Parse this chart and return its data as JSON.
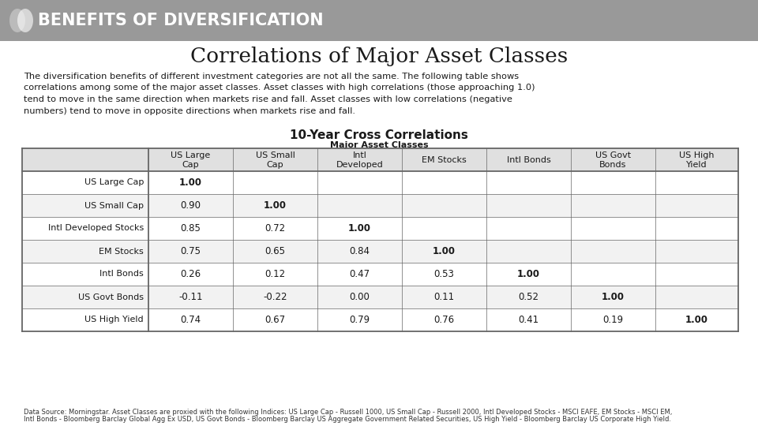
{
  "title": "BENEFITS OF DIVERSIFICATION",
  "subtitle": "Correlations of Major Asset Classes",
  "body_text": "The diversification benefits of different investment categories are not all the same. The following table shows correlations among some of the major asset classes. Asset classes with high correlations (those approaching 1.0) tend to move in the same direction when markets rise and fall. Asset classes with low correlations (negative numbers) tend to move in opposite directions when markets rise and fall.",
  "table_title": "10-Year Cross Correlations",
  "table_subtitle": "Major Asset Classes",
  "col_headers": [
    "",
    "US Large\nCap",
    "US Small\nCap",
    "Intl\nDeveloped",
    "EM Stocks",
    "Intl Bonds",
    "US Govt\nBonds",
    "US High\nYield"
  ],
  "row_labels": [
    "US Large Cap",
    "US Small Cap",
    "Intl Developed Stocks",
    "EM Stocks",
    "Intl Bonds",
    "US Govt Bonds",
    "US High Yield"
  ],
  "table_data": [
    [
      "1.00",
      "",
      "",
      "",
      "",
      "",
      ""
    ],
    [
      "0.90",
      "1.00",
      "",
      "",
      "",
      "",
      ""
    ],
    [
      "0.85",
      "0.72",
      "1.00",
      "",
      "",
      "",
      ""
    ],
    [
      "0.75",
      "0.65",
      "0.84",
      "1.00",
      "",
      "",
      ""
    ],
    [
      "0.26",
      "0.12",
      "0.47",
      "0.53",
      "1.00",
      "",
      ""
    ],
    [
      "-0.11",
      "-0.22",
      "0.00",
      "0.11",
      "0.52",
      "1.00",
      ""
    ],
    [
      "0.74",
      "0.67",
      "0.79",
      "0.76",
      "0.41",
      "0.19",
      "1.00"
    ]
  ],
  "footnote_line1": "Data Source: Morningstar. Asset Classes are proxied with the following Indices: US Large Cap - Russell 1000, US Small Cap - Russell 2000, Intl Developed Stocks - MSCI EAFE, EM Stocks - MSCI EM,",
  "footnote_line2": "Intl Bonds - Bloomberg Barclay Global Agg Ex USD, US Govt Bonds - Bloomberg Barclay US Aggregate Government Related Securities, US High Yield - Bloomberg Barclay US Corporate High Yield.",
  "header_bg": "#999999",
  "header_text_color": "#ffffff",
  "bg_color": "#ffffff",
  "table_border_color": "#666666",
  "row_alt_color": "#f2f2f2",
  "row_color": "#ffffff",
  "col_header_bg": "#e0e0e0"
}
